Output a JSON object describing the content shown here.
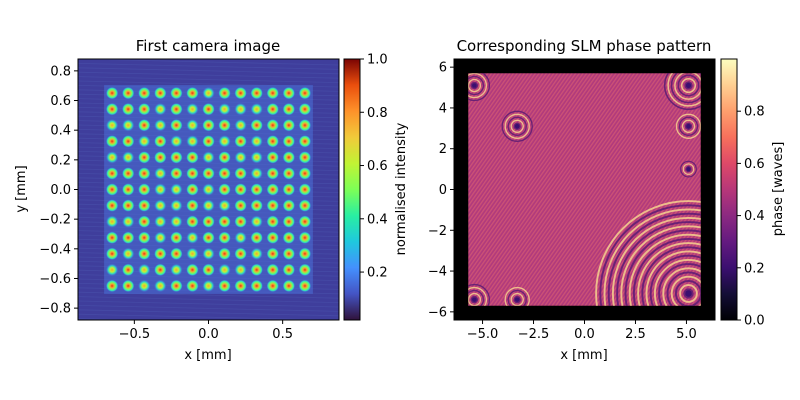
{
  "chart_data": [
    {
      "type": "heatmap",
      "title": "First camera image",
      "xlabel": "x [mm]",
      "ylabel": "y [mm]",
      "xlim": [
        -0.88,
        0.88
      ],
      "ylim": [
        -0.88,
        0.88
      ],
      "xticks": [
        -0.5,
        0.0,
        0.5
      ],
      "xtick_labels": [
        "−0.5",
        "0.0",
        "0.5"
      ],
      "yticks": [
        -0.8,
        -0.6,
        -0.4,
        -0.2,
        0.0,
        0.2,
        0.4,
        0.6,
        0.8
      ],
      "ytick_labels": [
        "−0.8",
        "−0.6",
        "−0.4",
        "−0.2",
        "0.0",
        "0.2",
        "0.4",
        "0.6",
        "0.8"
      ],
      "spot_grid": {
        "rows": 13,
        "cols": 13,
        "x_min": -0.65,
        "x_max": 0.65,
        "y_min": -0.65,
        "y_max": 0.65
      },
      "colormap": "turbo",
      "background_intensity": 0.05,
      "peak_intensity_range": [
        0.55,
        1.0
      ],
      "colorbar": {
        "label": "normalised intensity",
        "range": [
          0.02,
          1.0
        ],
        "ticks": [
          0.2,
          0.4,
          0.6,
          0.8,
          1.0
        ],
        "tick_labels": [
          "0.2",
          "0.4",
          "0.6",
          "0.8",
          "1.0"
        ]
      }
    },
    {
      "type": "heatmap",
      "title": "Corresponding SLM phase pattern",
      "xlabel": "x [mm]",
      "ylabel": "",
      "xlim": [
        -6.4,
        6.4
      ],
      "ylim": [
        -6.4,
        6.4
      ],
      "xticks": [
        -5.0,
        -2.5,
        0.0,
        2.5,
        5.0
      ],
      "xtick_labels": [
        "−5.0",
        "−2.5",
        "0.0",
        "2.5",
        "5.0"
      ],
      "yticks": [
        -6,
        -4,
        -2,
        0,
        2,
        4,
        6
      ],
      "ytick_labels": [
        "−6",
        "−4",
        "−2",
        "0",
        "2",
        "4",
        "6"
      ],
      "aperture": {
        "x_min": -5.7,
        "x_max": 5.7,
        "y_min": -5.7,
        "y_max": 5.7
      },
      "colormap": "magma",
      "mean_phase": 0.6,
      "fringe_centers": [
        {
          "x": 5.1,
          "y": -5.1
        },
        {
          "x": 5.1,
          "y": 5.1
        },
        {
          "x": -5.4,
          "y": 5.1
        },
        {
          "x": -5.4,
          "y": -5.4
        },
        {
          "x": -3.3,
          "y": 3.1
        },
        {
          "x": 5.1,
          "y": 3.1
        },
        {
          "x": -3.3,
          "y": -5.4
        },
        {
          "x": 5.1,
          "y": 1.0
        }
      ],
      "colorbar": {
        "label": "phase [waves]",
        "range": [
          0.0,
          1.0
        ],
        "ticks": [
          0.0,
          0.2,
          0.4,
          0.6,
          0.8
        ],
        "tick_labels": [
          "0.0",
          "0.2",
          "0.4",
          "0.6",
          "0.8"
        ]
      }
    }
  ]
}
